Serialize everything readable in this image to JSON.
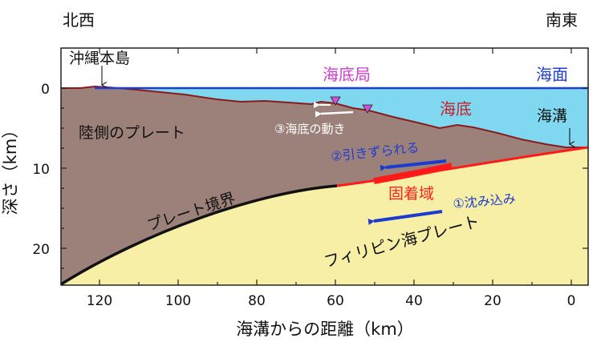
{
  "corner_labels": {
    "left": "北西",
    "right": "南東"
  },
  "axis": {
    "x_title": "海溝からの距離（km）",
    "y_title": "深さ（km）",
    "x_ticks": [
      "120",
      "100",
      "80",
      "60",
      "40",
      "20",
      "0"
    ],
    "y_ticks": [
      "0",
      "10",
      "20"
    ]
  },
  "labels": {
    "okinawa": "沖縄本島",
    "station": "海底局",
    "sea_surface": "海面",
    "trench": "海溝",
    "seafloor": "海底",
    "land_plate": "陸側のプレート",
    "seafloor_motion": "③海底の動き",
    "dragged": "②引きずられる",
    "locked_zone": "固着域",
    "sinking": "①沈み込み",
    "plate_boundary": "プレート境界",
    "ph_plate": "フィリピン海プレート"
  },
  "colors": {
    "sea": "#7fd8ef",
    "land_plate": "#9c807a",
    "ph_plate": "#f7efa6",
    "seafloor_line": "#8b1a1a",
    "plate_boundary": "#111111",
    "shallow_boundary": "#ff1a1a",
    "sea_surface": "#1f3fd0",
    "arrow_blue": "#1b3ccf",
    "station_marker": "#d44fd4",
    "magenta_text": "#d23ad2",
    "red_text": "#ff2020",
    "seafloor_text": "#c8202a"
  }
}
